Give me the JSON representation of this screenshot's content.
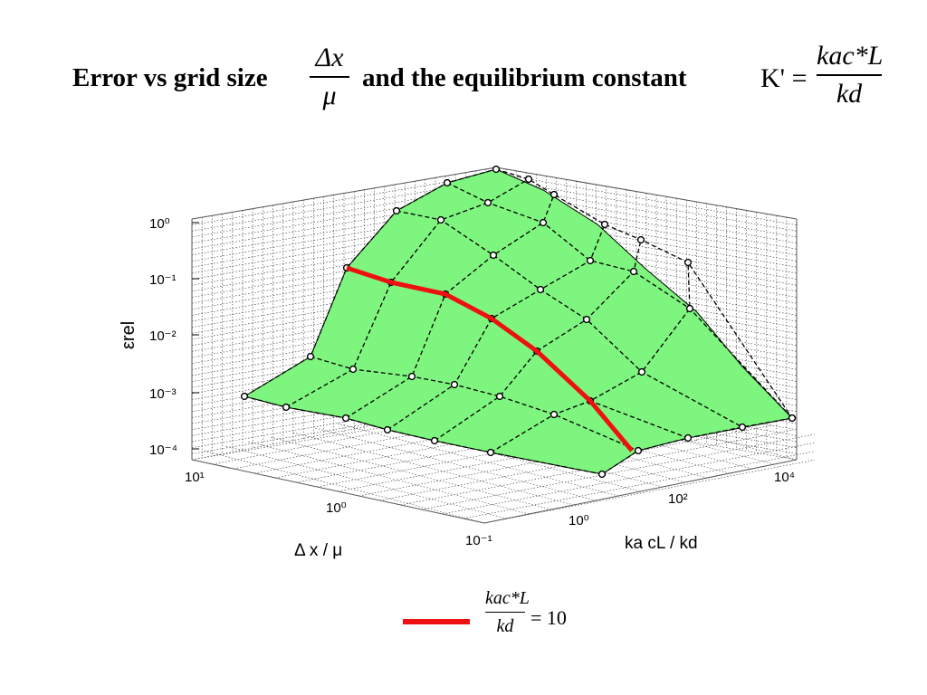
{
  "slide": {
    "title_part1": "Error vs grid size",
    "title_part2": "and the equilibrium constant",
    "frac_dx_num": "Δx",
    "frac_dx_den": "μ",
    "kprime_lhs": "K' =",
    "kprime_num": "kac*L",
    "kprime_den": "kd"
  },
  "legend": {
    "line_color": "#ee1111",
    "frac_num": "kac*L",
    "frac_den": "kd",
    "eq_text": "= 10"
  },
  "chart_data": {
    "type": "surface",
    "surface_color": "#7ef57e",
    "highlight_color": "#ee1111",
    "zlabel": "εrel",
    "xlabel": "Δ x / μ",
    "ylabel": "ka  cL  /  kd",
    "z_ticks": [
      "10⁰",
      "10⁻¹",
      "10⁻²",
      "10⁻³",
      "10⁻⁴"
    ],
    "x_ticks": [
      "10¹",
      "10⁰",
      "10⁻¹"
    ],
    "y_ticks": [
      "10⁰",
      "10²",
      "10⁴"
    ],
    "x_values": [
      10,
      4.6,
      2.2,
      1,
      0.46,
      0.22,
      0.1
    ],
    "y_values": [
      0.01,
      0.1,
      1,
      10,
      100,
      1000,
      10000
    ],
    "z_values": [
      [
        0.0009,
        0.0012,
        0.0009,
        0.0004,
        0.0002,
        0.00015,
        0.0001
      ],
      [
        0.003,
        0.003,
        0.0025,
        0.0012,
        0.0008,
        0.0004,
        0.0002
      ],
      [
        0.004,
        0.006,
        0.005,
        0.003,
        0.0015,
        0.0009,
        0.0006
      ],
      [
        0.02,
        0.03,
        0.02,
        0.01,
        0.005,
        0.003,
        0.0015
      ],
      [
        0.09,
        0.1,
        0.06,
        0.03,
        0.015,
        0.008,
        0.004
      ],
      [
        0.2,
        0.25,
        0.15,
        0.08,
        0.04,
        0.02,
        0.01
      ],
      [
        0.3,
        0.4,
        0.3,
        0.15,
        0.07,
        0.035,
        0.018
      ]
    ],
    "highlight_series": {
      "name": "kac*L / kd = 10",
      "x": [
        10,
        4.6,
        2.2,
        1,
        0.46,
        0.22,
        0.1
      ],
      "z": [
        0.2,
        0.1,
        0.05,
        0.02,
        0.006,
        0.0008,
        0.0001
      ]
    }
  }
}
